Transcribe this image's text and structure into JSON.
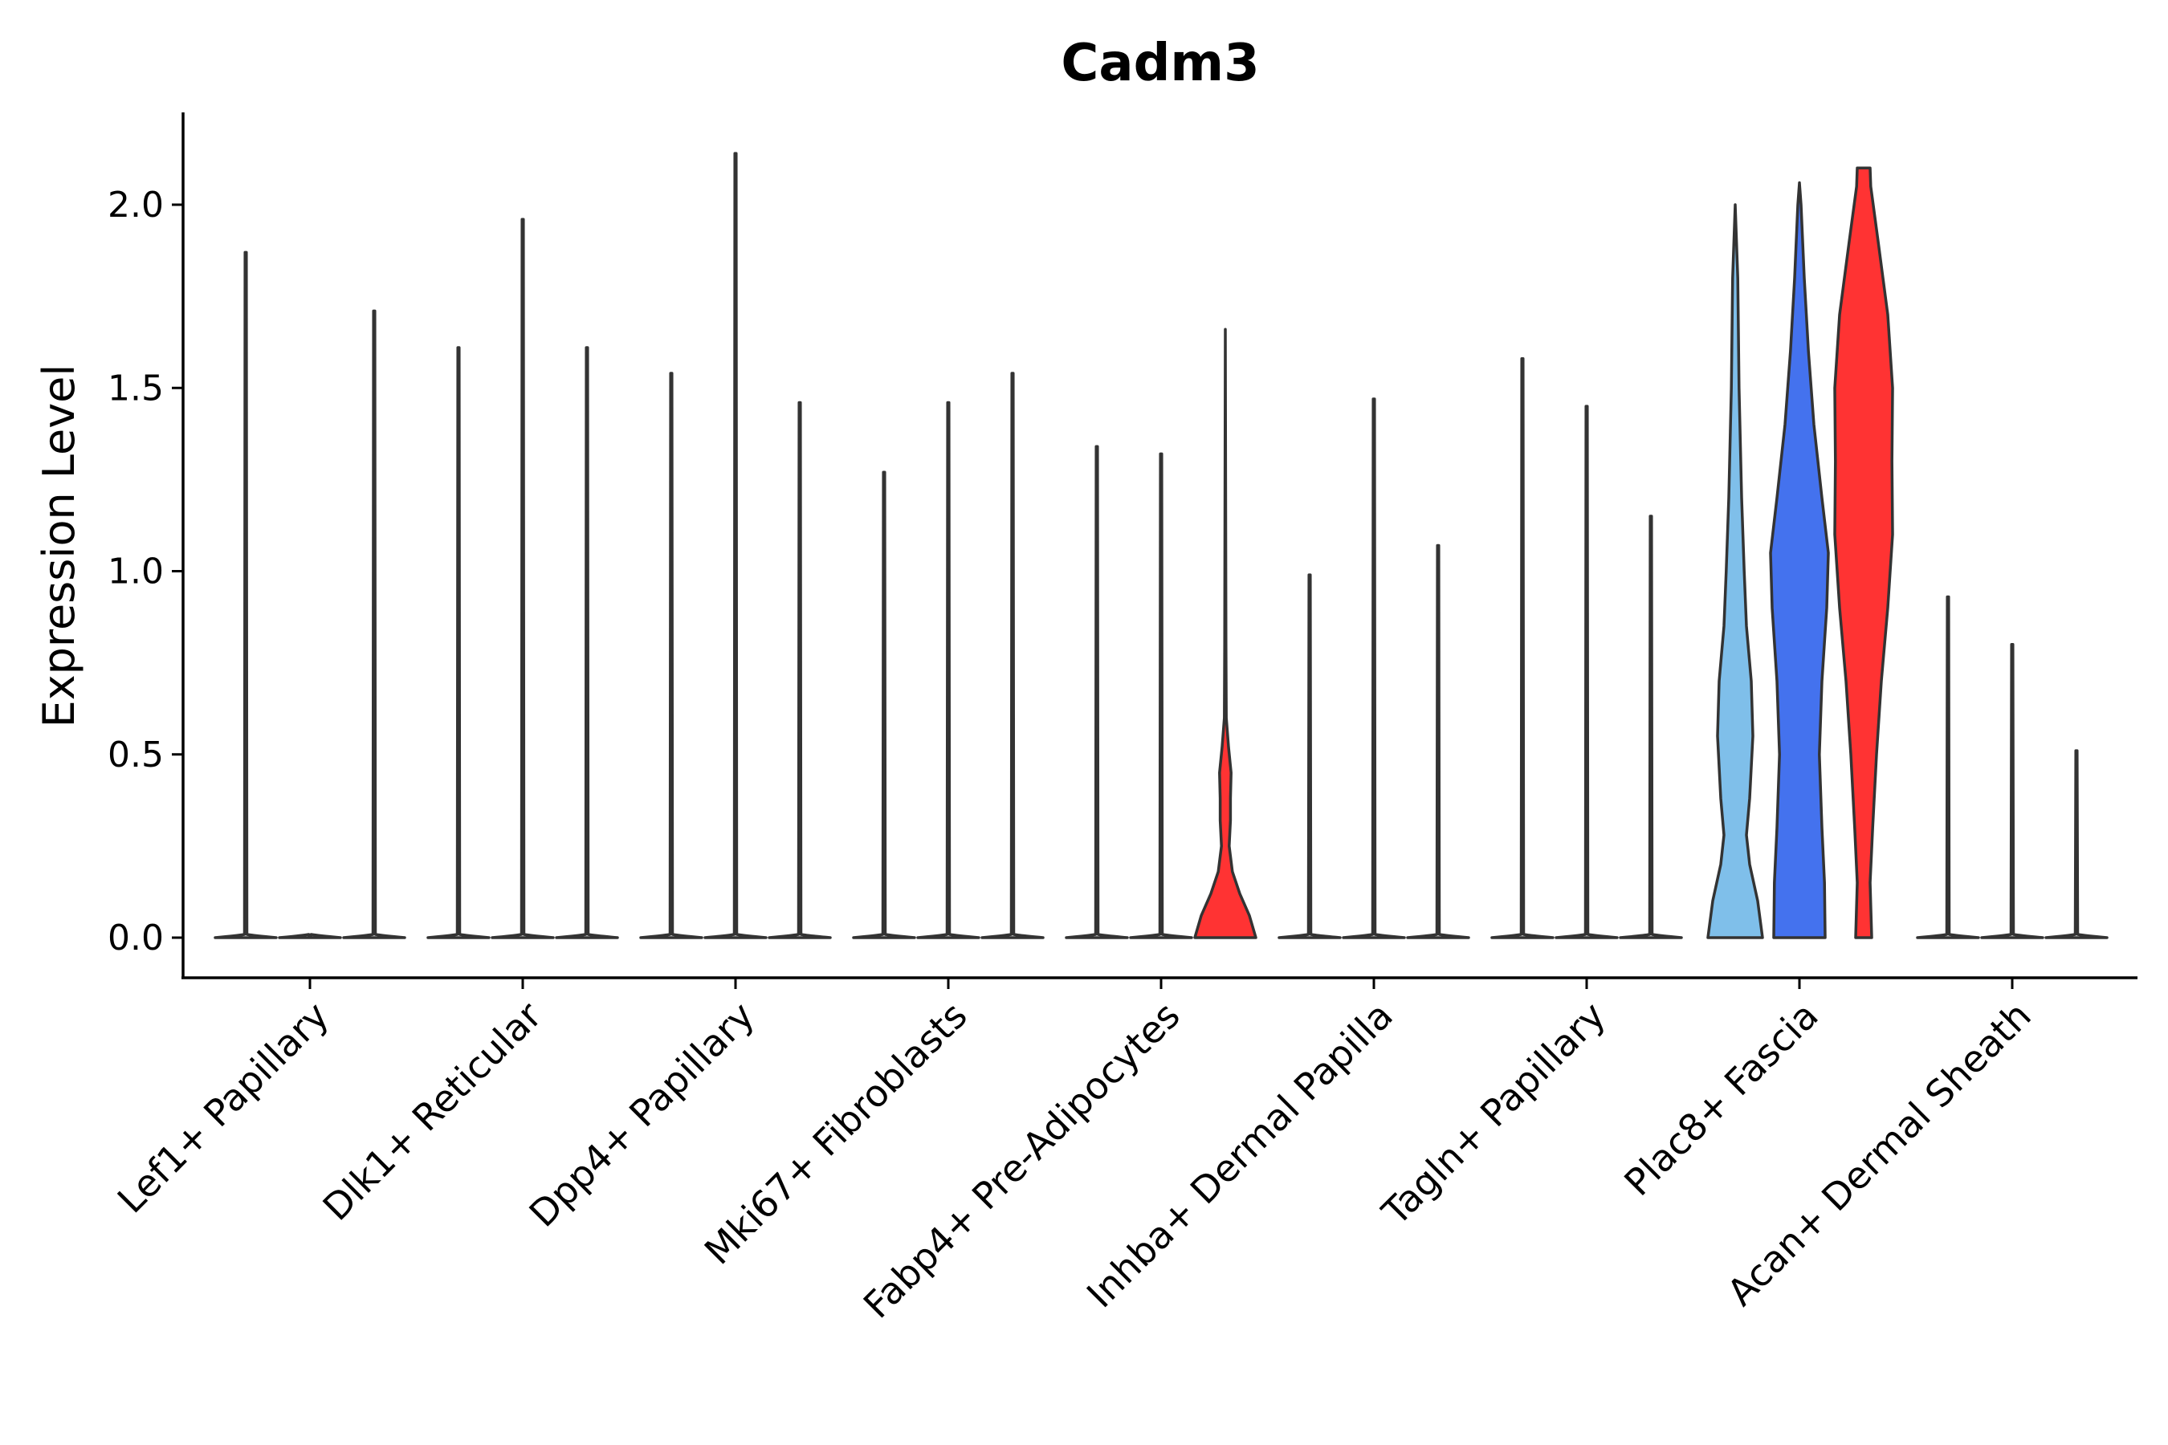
{
  "chart_data": {
    "type": "violin",
    "title": "Cadm3",
    "xlabel": "",
    "ylabel": "Expression Level",
    "ylim": [
      -0.1,
      2.24
    ],
    "yticks": [
      0.0,
      0.5,
      1.0,
      1.5,
      2.0
    ],
    "ytick_labels": [
      "0.0",
      "0.5",
      "1.0",
      "1.5",
      "2.0"
    ],
    "grid": false,
    "legend": "none",
    "categories": [
      "Lef1+ Papillary",
      "Dlk1+ Reticular",
      "Dpp4+ Papillary",
      "Mki67+ Fibroblasts",
      "Fabp4+ Pre-Adipocytes",
      "Inhba+ Dermal Papilla",
      "Tagln+ Papillary",
      "Plac8+ Fascia",
      "Acan+ Dermal Sheath"
    ],
    "series": [
      {
        "max": [
          1.87,
          1.61,
          1.54,
          1.27,
          1.34,
          0.99,
          1.58,
          2.0,
          0.93
        ],
        "color": "#FFFFFF"
      },
      {
        "max": [
          0.0,
          1.96,
          2.14,
          1.46,
          1.32,
          1.47,
          1.45,
          2.06,
          0.8
        ],
        "color": "#FFFFFF"
      },
      {
        "max": [
          1.71,
          1.61,
          1.46,
          1.54,
          1.66,
          1.07,
          1.15,
          2.1,
          0.51
        ],
        "color": "#FFFFFF"
      }
    ],
    "expressing_violins": [
      {
        "category_index": 4,
        "series_index": 2,
        "color": "#FF3333",
        "profile": [
          [
            0.0,
            0.95
          ],
          [
            0.06,
            0.75
          ],
          [
            0.12,
            0.45
          ],
          [
            0.18,
            0.22
          ],
          [
            0.25,
            0.12
          ],
          [
            0.32,
            0.16
          ],
          [
            0.38,
            0.16
          ],
          [
            0.45,
            0.18
          ],
          [
            0.52,
            0.1
          ],
          [
            0.6,
            0.03
          ],
          [
            0.8,
            0.02
          ],
          [
            1.66,
            0.0
          ]
        ]
      },
      {
        "category_index": 7,
        "series_index": 0,
        "color": "#7FBFEA",
        "profile": [
          [
            0.0,
            0.85
          ],
          [
            0.1,
            0.7
          ],
          [
            0.2,
            0.45
          ],
          [
            0.28,
            0.35
          ],
          [
            0.38,
            0.45
          ],
          [
            0.55,
            0.55
          ],
          [
            0.7,
            0.5
          ],
          [
            0.85,
            0.35
          ],
          [
            1.0,
            0.28
          ],
          [
            1.2,
            0.2
          ],
          [
            1.5,
            0.12
          ],
          [
            1.8,
            0.08
          ],
          [
            2.0,
            0.0
          ]
        ]
      },
      {
        "category_index": 7,
        "series_index": 1,
        "color": "#4472EE",
        "profile": [
          [
            0.0,
            0.8
          ],
          [
            0.15,
            0.78
          ],
          [
            0.3,
            0.7
          ],
          [
            0.5,
            0.62
          ],
          [
            0.7,
            0.7
          ],
          [
            0.9,
            0.85
          ],
          [
            1.05,
            0.9
          ],
          [
            1.2,
            0.7
          ],
          [
            1.4,
            0.45
          ],
          [
            1.6,
            0.28
          ],
          [
            1.8,
            0.15
          ],
          [
            2.0,
            0.05
          ],
          [
            2.06,
            0.0
          ]
        ]
      },
      {
        "category_index": 7,
        "series_index": 2,
        "color": "#FF3333",
        "profile": [
          [
            0.0,
            0.25
          ],
          [
            0.15,
            0.2
          ],
          [
            0.3,
            0.28
          ],
          [
            0.5,
            0.4
          ],
          [
            0.7,
            0.55
          ],
          [
            0.9,
            0.75
          ],
          [
            1.1,
            0.9
          ],
          [
            1.3,
            0.88
          ],
          [
            1.5,
            0.9
          ],
          [
            1.7,
            0.75
          ],
          [
            1.9,
            0.45
          ],
          [
            2.05,
            0.22
          ],
          [
            2.1,
            0.2
          ]
        ]
      }
    ]
  }
}
